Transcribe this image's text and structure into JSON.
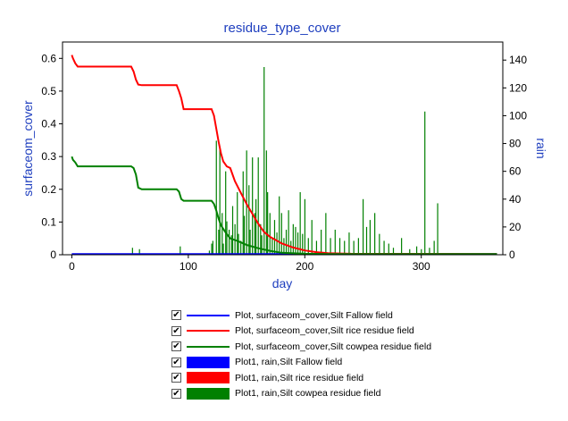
{
  "chart_data": {
    "type": "line",
    "title": "residue_type_cover",
    "xlabel": "day",
    "ylabel": "surfaceom_cover",
    "y2label": "rain",
    "xlim": [
      -8,
      370
    ],
    "ylim": [
      0,
      0.65
    ],
    "y2lim": [
      0,
      153
    ],
    "xticks": [
      0,
      100,
      200,
      300
    ],
    "yticks": [
      0,
      0.1,
      0.2,
      0.3,
      0.4,
      0.5,
      0.6
    ],
    "y2ticks": [
      0,
      20,
      40,
      60,
      80,
      100,
      120,
      140
    ],
    "grid": false,
    "legend_position": "bottom",
    "series": [
      {
        "name": "Plot, surfaceom_cover,Silt Fallow field",
        "axis": "left",
        "kind": "line",
        "color": "#0000ff",
        "x": [
          0,
          365
        ],
        "y": [
          0.002,
          0.002
        ]
      },
      {
        "name": "Plot, surfaceom_cover,Silt rice residue field",
        "axis": "left",
        "kind": "line",
        "color": "#ff0000",
        "x": [
          0,
          1,
          3,
          5,
          51,
          53,
          55,
          57,
          60,
          90,
          92,
          94,
          96,
          120,
          122,
          124,
          126,
          128,
          130,
          133,
          136,
          140,
          145,
          150,
          155,
          160,
          165,
          170,
          175,
          180,
          190,
          200,
          210,
          220,
          240,
          365
        ],
        "y": [
          0.61,
          0.6,
          0.585,
          0.575,
          0.575,
          0.56,
          0.535,
          0.52,
          0.518,
          0.518,
          0.5,
          0.478,
          0.445,
          0.445,
          0.425,
          0.385,
          0.345,
          0.31,
          0.285,
          0.27,
          0.265,
          0.225,
          0.19,
          0.155,
          0.125,
          0.095,
          0.07,
          0.055,
          0.045,
          0.035,
          0.022,
          0.013,
          0.008,
          0.005,
          0.003,
          0.002
        ]
      },
      {
        "name": "Plot, surfaceom_cover,Silt cowpea residue field",
        "axis": "left",
        "kind": "line",
        "color": "#008000",
        "x": [
          0,
          1,
          3,
          5,
          51,
          53,
          55,
          57,
          60,
          90,
          92,
          94,
          96,
          120,
          122,
          124,
          126,
          128,
          132,
          136,
          140,
          145,
          150,
          160,
          170,
          180,
          200,
          220,
          365
        ],
        "y": [
          0.3,
          0.29,
          0.282,
          0.27,
          0.27,
          0.265,
          0.245,
          0.205,
          0.2,
          0.2,
          0.193,
          0.17,
          0.165,
          0.165,
          0.155,
          0.135,
          0.11,
          0.09,
          0.068,
          0.05,
          0.045,
          0.038,
          0.03,
          0.02,
          0.012,
          0.006,
          0.003,
          0.002,
          0.002
        ]
      },
      {
        "name": "Plot1, rain,Silt Fallow field",
        "axis": "right",
        "kind": "bar",
        "color": "#0000ff",
        "x": [],
        "y": []
      },
      {
        "name": "Plot1, rain,Silt rice residue field",
        "axis": "right",
        "kind": "bar",
        "color": "#ff0000",
        "x": [],
        "y": []
      },
      {
        "name": "Plot1, rain,Silt cowpea residue field",
        "axis": "right",
        "kind": "bar",
        "color": "#008000",
        "x": [
          52,
          58,
          93,
          118,
          120,
          121,
          124,
          126,
          127,
          129,
          130,
          132,
          133,
          135,
          137,
          138,
          140,
          142,
          143,
          145,
          147,
          148,
          150,
          152,
          153,
          155,
          157,
          158,
          160,
          162,
          163,
          165,
          167,
          168,
          170,
          172,
          174,
          176,
          178,
          180,
          182,
          184,
          186,
          188,
          190,
          192,
          194,
          196,
          198,
          200,
          203,
          206,
          210,
          214,
          218,
          222,
          226,
          230,
          234,
          238,
          242,
          246,
          250,
          253,
          256,
          260,
          264,
          268,
          272,
          276,
          283,
          290,
          296,
          300,
          303,
          307,
          311,
          314
        ],
        "y": [
          5,
          4,
          6,
          3,
          8,
          10,
          82,
          18,
          78,
          30,
          8,
          60,
          24,
          18,
          14,
          35,
          22,
          45,
          15,
          10,
          60,
          28,
          75,
          50,
          18,
          70,
          30,
          40,
          70,
          22,
          14,
          135,
          75,
          45,
          30,
          12,
          25,
          16,
          42,
          30,
          12,
          18,
          32,
          10,
          22,
          20,
          16,
          45,
          15,
          40,
          12,
          25,
          10,
          18,
          30,
          12,
          18,
          12,
          10,
          16,
          10,
          12,
          40,
          20,
          25,
          30,
          15,
          10,
          8,
          5,
          12,
          4,
          6,
          4,
          103,
          5,
          10,
          37
        ]
      }
    ]
  },
  "legend": {
    "items": [
      {
        "label": "Plot, surfaceom_cover,Silt Fallow field",
        "checked": "✔",
        "color": "#0000ff",
        "style": "line"
      },
      {
        "label": "Plot, surfaceom_cover,Silt rice residue field",
        "checked": "✔",
        "color": "#ff0000",
        "style": "line"
      },
      {
        "label": "Plot, surfaceom_cover,Silt cowpea residue field",
        "checked": "✔",
        "color": "#008000",
        "style": "line"
      },
      {
        "label": "Plot1, rain,Silt Fallow field",
        "checked": "✔",
        "color": "#0000ff",
        "style": "box"
      },
      {
        "label": "Plot1, rain,Silt rice residue field",
        "checked": "✔",
        "color": "#ff0000",
        "style": "box"
      },
      {
        "label": "Plot1, rain,Silt cowpea residue field",
        "checked": "✔",
        "color": "#008000",
        "style": "box"
      }
    ]
  }
}
